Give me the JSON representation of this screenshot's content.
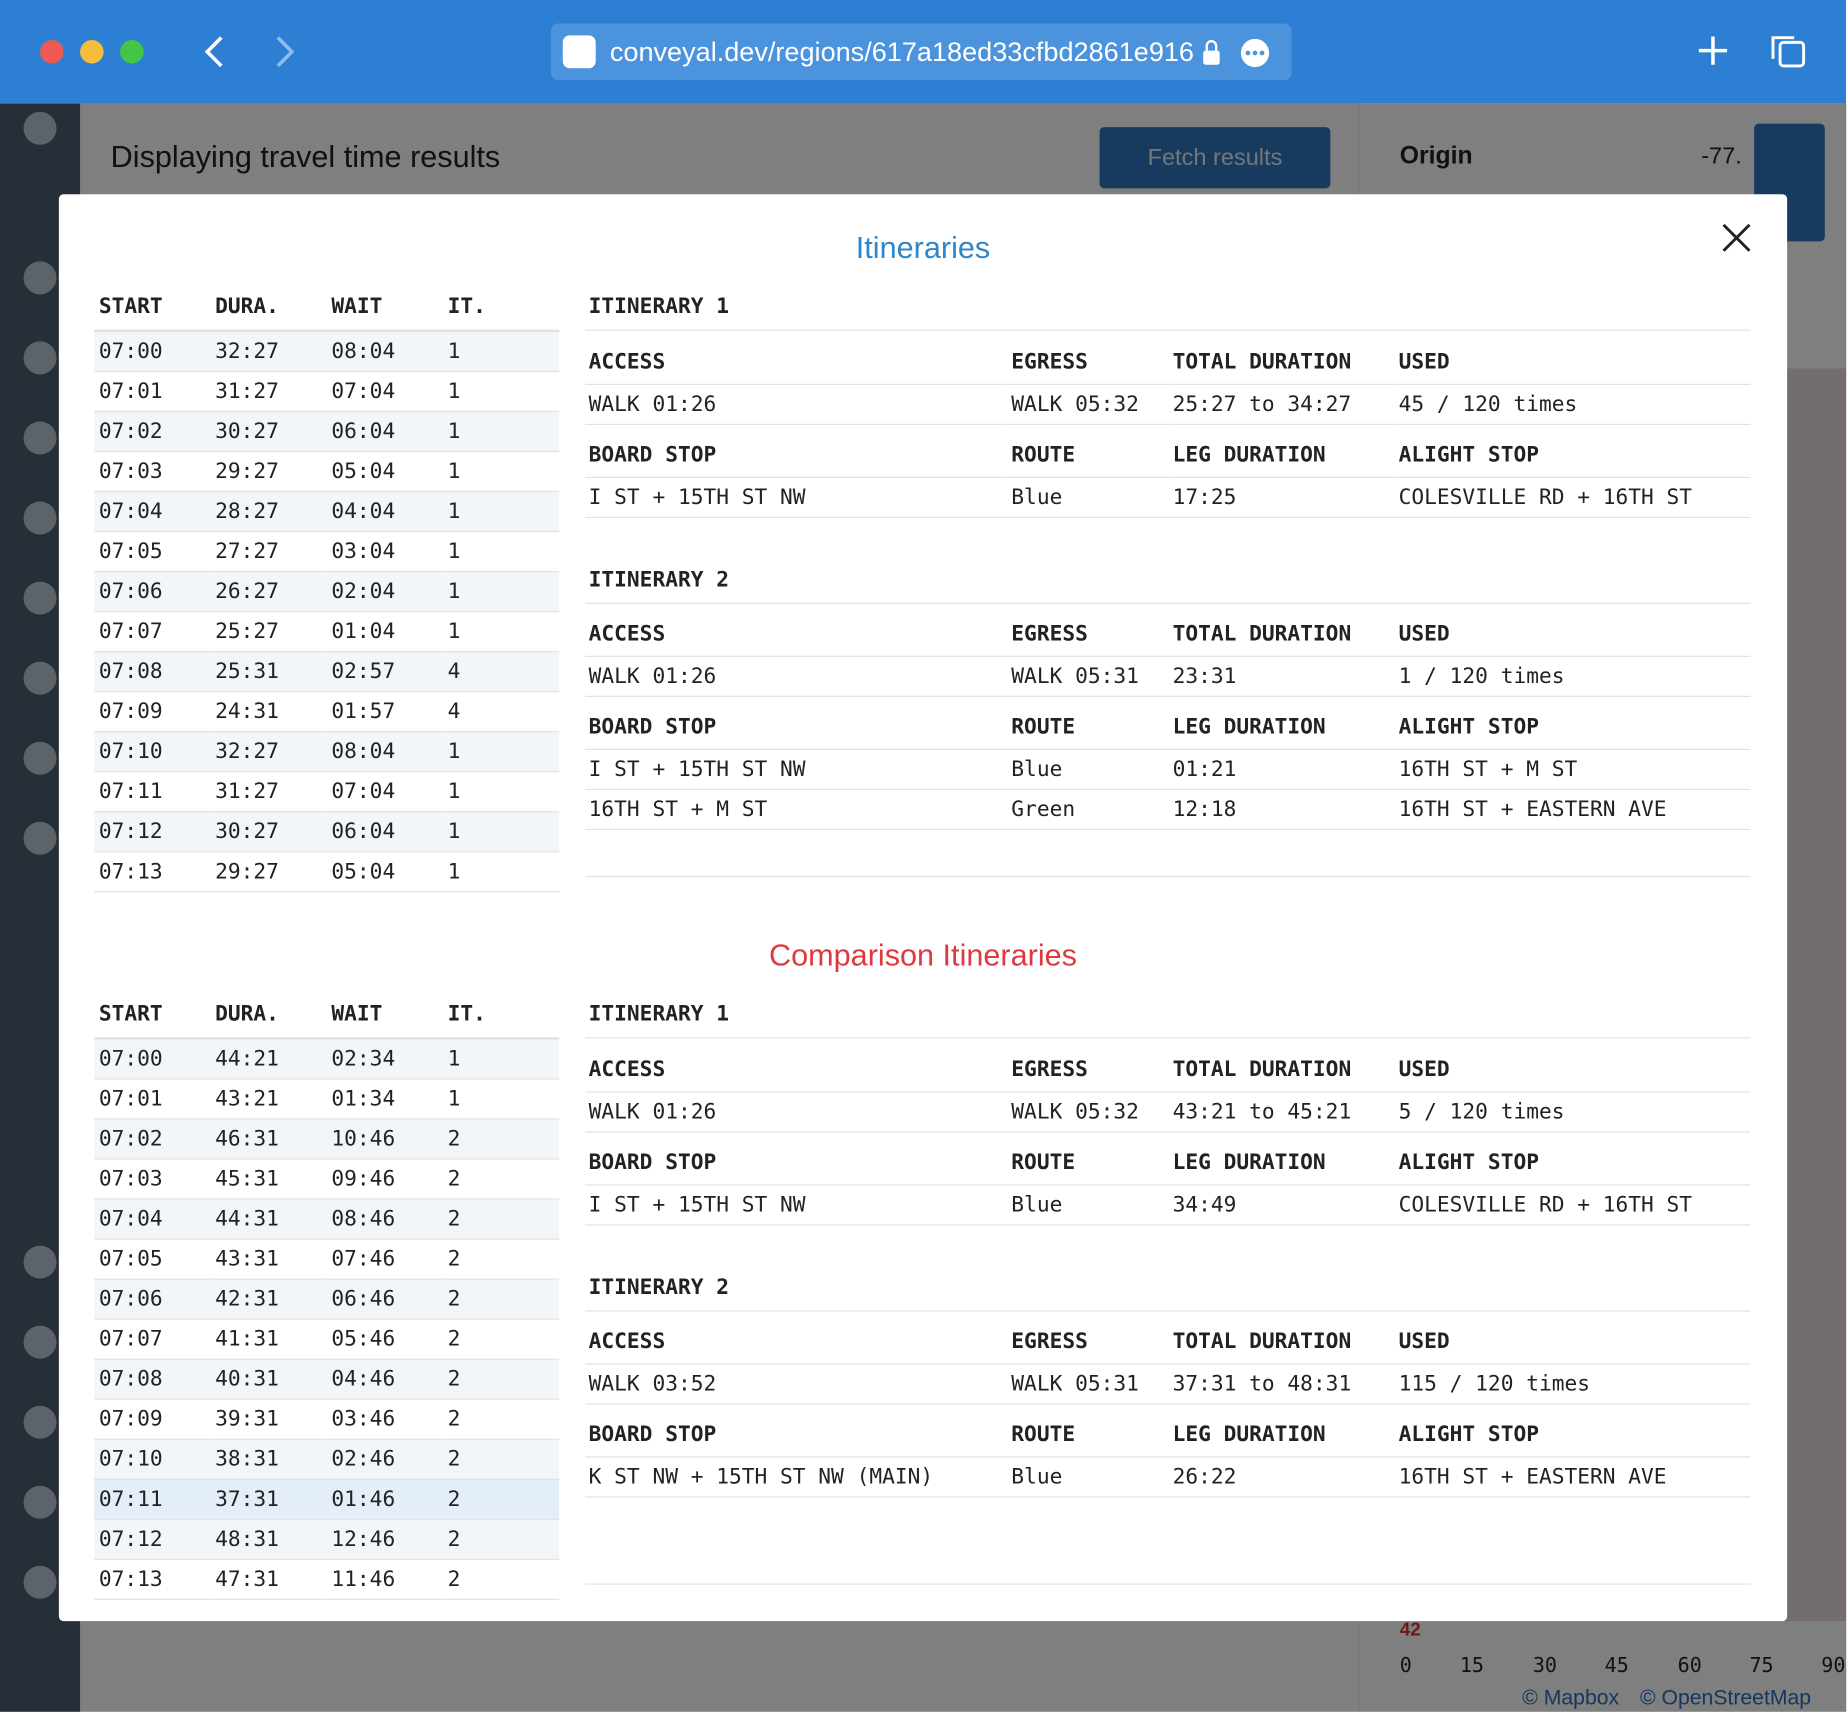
{
  "browser": {
    "url": "conveyal.dev/regions/617a18ed33cfbd2861e916"
  },
  "background": {
    "title": "Displaying travel time results",
    "fetch_button": "Fetch results",
    "origin_label": "Origin",
    "origin_value": "-77.",
    "histogram": {
      "value_label": "42",
      "axis_ticks": [
        "0",
        "15",
        "30",
        "45",
        "60",
        "75",
        "90"
      ]
    },
    "attribution": [
      "© Mapbox",
      "© OpenStreetMap"
    ]
  },
  "modal": {
    "sections": [
      {
        "title": "Itineraries",
        "summary": {
          "headers": [
            "START",
            "DURA.",
            "WAIT",
            "IT."
          ],
          "rows": [
            [
              "07:00",
              "32:27",
              "08:04",
              "1"
            ],
            [
              "07:01",
              "31:27",
              "07:04",
              "1"
            ],
            [
              "07:02",
              "30:27",
              "06:04",
              "1"
            ],
            [
              "07:03",
              "29:27",
              "05:04",
              "1"
            ],
            [
              "07:04",
              "28:27",
              "04:04",
              "1"
            ],
            [
              "07:05",
              "27:27",
              "03:04",
              "1"
            ],
            [
              "07:06",
              "26:27",
              "02:04",
              "1"
            ],
            [
              "07:07",
              "25:27",
              "01:04",
              "1"
            ],
            [
              "07:08",
              "25:31",
              "02:57",
              "4"
            ],
            [
              "07:09",
              "24:31",
              "01:57",
              "4"
            ],
            [
              "07:10",
              "32:27",
              "08:04",
              "1"
            ],
            [
              "07:11",
              "31:27",
              "07:04",
              "1"
            ],
            [
              "07:12",
              "30:27",
              "06:04",
              "1"
            ],
            [
              "07:13",
              "29:27",
              "05:04",
              "1"
            ]
          ]
        },
        "itineraries": [
          {
            "title": "ITINERARY 1",
            "access_headers": [
              "ACCESS",
              "EGRESS",
              "TOTAL DURATION",
              "USED"
            ],
            "access": [
              "WALK 01:26",
              "WALK 05:32",
              "25:27 to 34:27",
              "45 / 120 times"
            ],
            "leg_headers": [
              "BOARD STOP",
              "ROUTE",
              "LEG DURATION",
              "ALIGHT STOP"
            ],
            "legs": [
              [
                "I ST + 15TH ST NW",
                "Blue",
                "17:25",
                "COLESVILLE RD + 16TH ST"
              ]
            ]
          },
          {
            "title": "ITINERARY 2",
            "access_headers": [
              "ACCESS",
              "EGRESS",
              "TOTAL DURATION",
              "USED"
            ],
            "access": [
              "WALK 01:26",
              "WALK 05:31",
              "23:31",
              "1 / 120 times"
            ],
            "leg_headers": [
              "BOARD STOP",
              "ROUTE",
              "LEG DURATION",
              "ALIGHT STOP"
            ],
            "legs": [
              [
                "I ST + 15TH ST NW",
                "Blue",
                "01:21",
                "16TH ST + M ST"
              ],
              [
                "16TH ST + M ST",
                "Green",
                "12:18",
                "16TH ST + EASTERN AVE"
              ]
            ]
          }
        ]
      },
      {
        "title": "Comparison Itineraries",
        "summary": {
          "headers": [
            "START",
            "DURA.",
            "WAIT",
            "IT."
          ],
          "rows": [
            [
              "07:00",
              "44:21",
              "02:34",
              "1"
            ],
            [
              "07:01",
              "43:21",
              "01:34",
              "1"
            ],
            [
              "07:02",
              "46:31",
              "10:46",
              "2"
            ],
            [
              "07:03",
              "45:31",
              "09:46",
              "2"
            ],
            [
              "07:04",
              "44:31",
              "08:46",
              "2"
            ],
            [
              "07:05",
              "43:31",
              "07:46",
              "2"
            ],
            [
              "07:06",
              "42:31",
              "06:46",
              "2"
            ],
            [
              "07:07",
              "41:31",
              "05:46",
              "2"
            ],
            [
              "07:08",
              "40:31",
              "04:46",
              "2"
            ],
            [
              "07:09",
              "39:31",
              "03:46",
              "2"
            ],
            [
              "07:10",
              "38:31",
              "02:46",
              "2"
            ],
            [
              "07:11",
              "37:31",
              "01:46",
              "2"
            ],
            [
              "07:12",
              "48:31",
              "12:46",
              "2"
            ],
            [
              "07:13",
              "47:31",
              "11:46",
              "2"
            ]
          ]
        },
        "itineraries": [
          {
            "title": "ITINERARY 1",
            "access_headers": [
              "ACCESS",
              "EGRESS",
              "TOTAL DURATION",
              "USED"
            ],
            "access": [
              "WALK 01:26",
              "WALK 05:32",
              "43:21 to 45:21",
              "5 / 120 times"
            ],
            "leg_headers": [
              "BOARD STOP",
              "ROUTE",
              "LEG DURATION",
              "ALIGHT STOP"
            ],
            "legs": [
              [
                "I ST + 15TH ST NW",
                "Blue",
                "34:49",
                "COLESVILLE RD + 16TH ST"
              ]
            ]
          },
          {
            "title": "ITINERARY 2",
            "access_headers": [
              "ACCESS",
              "EGRESS",
              "TOTAL DURATION",
              "USED"
            ],
            "access": [
              "WALK 03:52",
              "WALK 05:31",
              "37:31 to 48:31",
              "115 / 120 times"
            ],
            "leg_headers": [
              "BOARD STOP",
              "ROUTE",
              "LEG DURATION",
              "ALIGHT STOP"
            ],
            "legs": [
              [
                "K ST NW + 15TH ST NW (MAIN)",
                "Blue",
                "26:22",
                "16TH ST + EASTERN AVE"
              ]
            ]
          }
        ]
      }
    ]
  }
}
